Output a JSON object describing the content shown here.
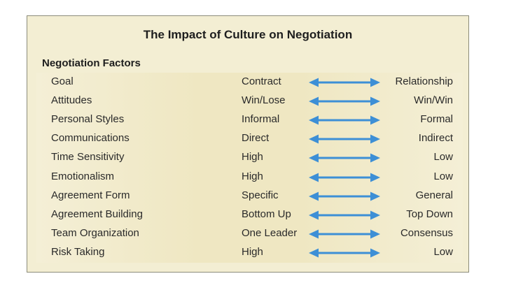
{
  "title": "The Impact of Culture on Negotiation",
  "section_heading": "Negotiation Factors",
  "arrow_color": "#3d8fd6",
  "rows": [
    {
      "factor": "Goal",
      "left": "Contract",
      "right": "Relationship"
    },
    {
      "factor": "Attitudes",
      "left": "Win/Lose",
      "right": "Win/Win"
    },
    {
      "factor": "Personal Styles",
      "left": "Informal",
      "right": "Formal"
    },
    {
      "factor": "Communications",
      "left": "Direct",
      "right": "Indirect"
    },
    {
      "factor": "Time Sensitivity",
      "left": "High",
      "right": "Low"
    },
    {
      "factor": "Emotionalism",
      "left": "High",
      "right": "Low"
    },
    {
      "factor": "Agreement Form",
      "left": "Specific",
      "right": "General"
    },
    {
      "factor": "Agreement Building",
      "left": "Bottom Up",
      "right": "Top Down"
    },
    {
      "factor": "Team Organization",
      "left": "One Leader",
      "right": "Consensus"
    },
    {
      "factor": "Risk Taking",
      "left": "High",
      "right": "Low"
    }
  ]
}
